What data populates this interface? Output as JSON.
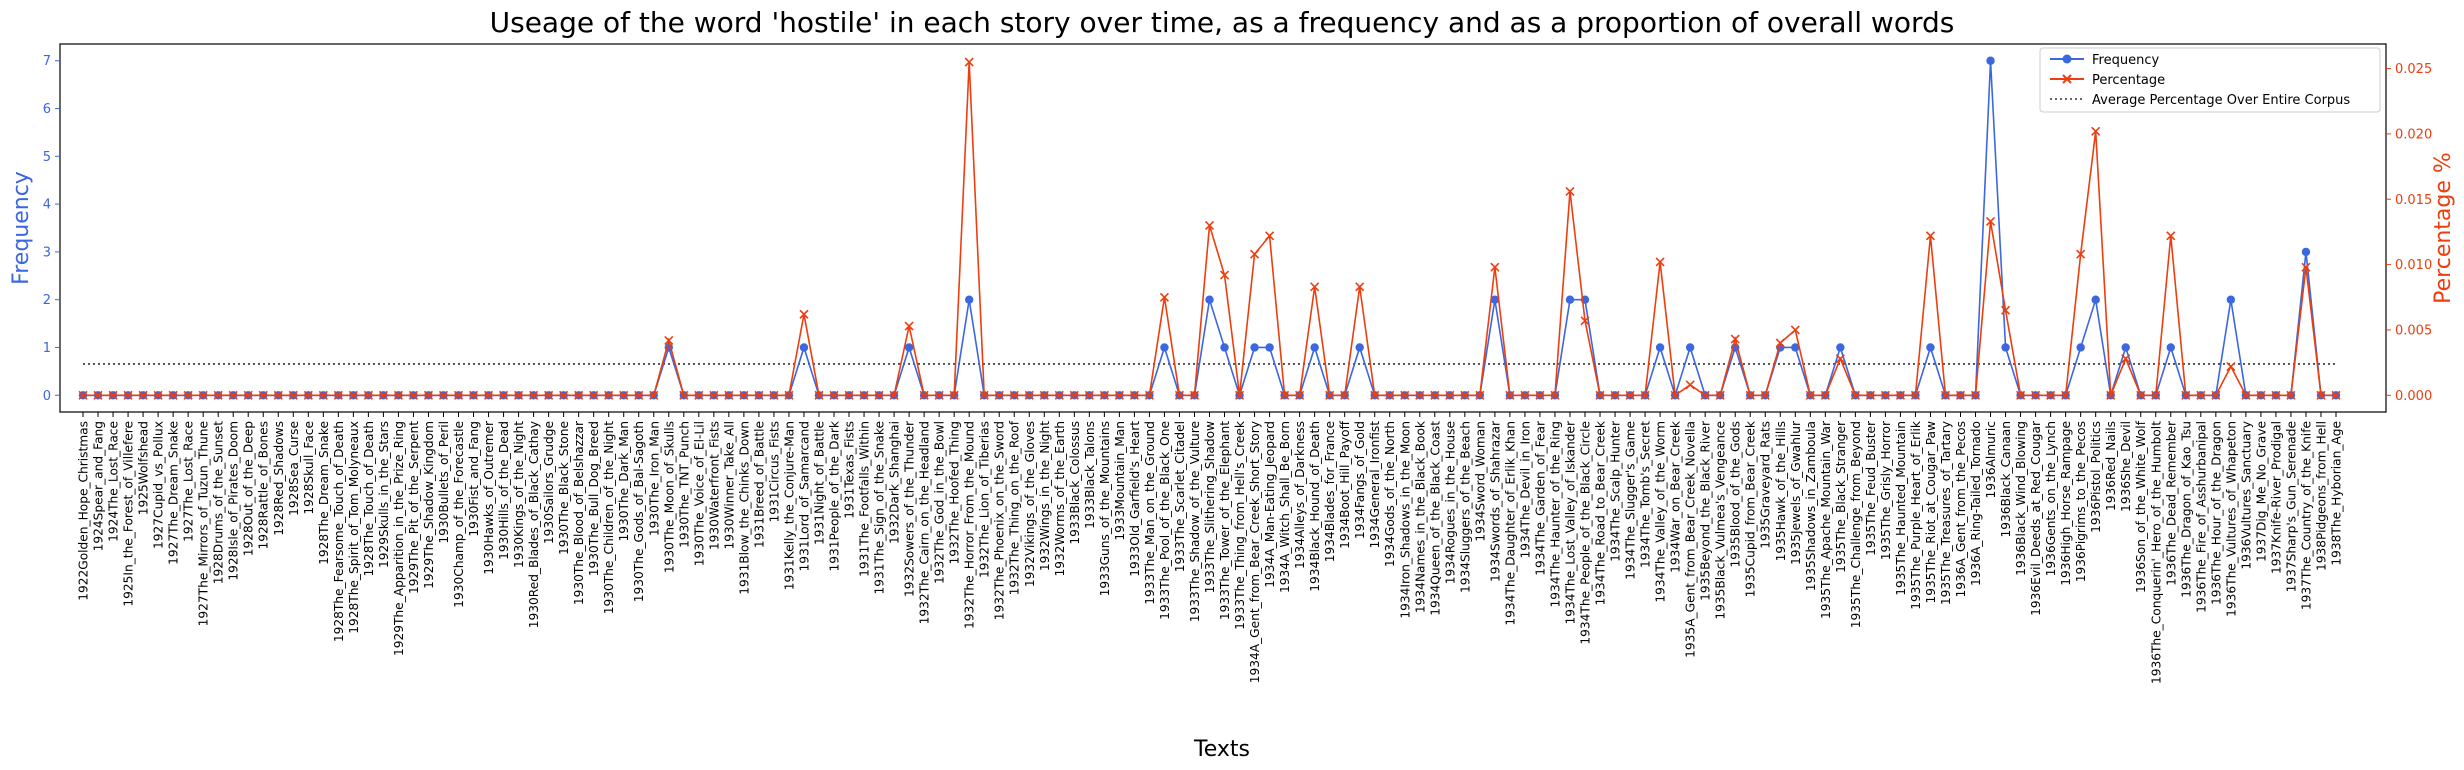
{
  "chart_data": {
    "type": "line",
    "title": "Useage of the word 'hostile' in each story over time, as a frequency and as a proportion of overall words",
    "xlabel": "Texts",
    "ylabel_left": "Frequency",
    "ylabel_right": "Percentage %",
    "ylim_left": [
      -0.35,
      7.35
    ],
    "ylim_right": [
      -0.00128,
      0.02688
    ],
    "yticks_left": [
      "0",
      "1",
      "2",
      "3",
      "4",
      "5",
      "6",
      "7"
    ],
    "yticks_right": [
      "0.000",
      "0.005",
      "0.010",
      "0.015",
      "0.020",
      "0.025"
    ],
    "legend_position": "top-right",
    "legend": [
      "Frequency",
      "Percentage",
      "Average Percentage Over Entire Corpus"
    ],
    "colors": {
      "frequency": "#3b67e0",
      "percentage": "#ec3e0e",
      "average": "#333333",
      "left_axis": "#3b67e0",
      "right_axis": "#ec3e0e"
    },
    "average_percentage": 0.0024,
    "categories": [
      "1922Golden_Hope_Christmas",
      "1924Spear_and_Fang",
      "1924The_Lost_Race",
      "1925In_the_Forest_of_Villefere",
      "1925Wolfshead",
      "1927Cupid_vs_Pollux",
      "1927The_Dream_Snake",
      "1927The_Lost_Race",
      "1927The_Mirrors_of_Tuzun_Thune",
      "1928Drums_of_the_Sunset",
      "1928Isle_of_Pirates_Doom",
      "1928Out_of_the_Deep",
      "1928Rattle_of_Bones",
      "1928Red_Shadows",
      "1928Sea_Curse",
      "1928Skull_Face",
      "1928The_Dream_Snake",
      "1928The_Fearsome_Touch_of_Death",
      "1928The_Spirit_of_Tom_Molyneaux",
      "1928The_Touch_of_Death",
      "1929Skulls_in_the_Stars",
      "1929The_Apparition_in_the_Prize_Ring",
      "1929The_Pit_of_the_Serpent",
      "1929The_Shadow_Kingdom",
      "1930Bullets_of_Peril",
      "1930Champ_of_the_Forecastle",
      "1930Fist_and_Fang",
      "1930Hawks_of_Outremer",
      "1930Hills_of_the_Dead",
      "1930Kings_of_the_Night",
      "1930Red_Blades_of_Black_Cathay",
      "1930Sailors_Grudge",
      "1930The_Black_Stone",
      "1930The_Blood_of_Belshazzar",
      "1930The_Bull_Dog_Breed",
      "1930The_Children_of_the_Night",
      "1930The_Dark_Man",
      "1930The_Gods_of_Bal-Sagoth",
      "1930The_Iron_Man",
      "1930The_Moon_of_Skulls",
      "1930The_TNT_Punch",
      "1930The_Voice_of_El-Lil",
      "1930Waterfront_Fists",
      "1930Winner_Take_All",
      "1931Blow_the_Chinks_Down",
      "1931Breed_of_Battle",
      "1931Circus_Fists",
      "1931Kelly_the_Conjure-Man",
      "1931Lord_of_Samarcand",
      "1931Night_of_Battle",
      "1931People_of_the_Dark",
      "1931Texas_Fists",
      "1931The_Footfalls_Within",
      "1931The_Sign_of_the_Snake",
      "1932Dark_Shanghai",
      "1932Sowers_of_the_Thunder",
      "1932The_Cairn_on_the_Headland",
      "1932The_God_in_the_Bowl",
      "1932The_Hoofed_Thing",
      "1932The_Horror_From_the_Mound",
      "1932The_Lion_of_Tiberias",
      "1932The_Phoenix_on_the_Sword",
      "1932The_Thing_on_the_Roof",
      "1932Vikings_of_the_Gloves",
      "1932Wings_in_the_Night",
      "1932Worms_of_the_Earth",
      "1933Black_Colossus",
      "1933Black_Talons",
      "1933Guns_of_the_Mountains",
      "1933Mountain_Man",
      "1933Old_Garfield's_Heart",
      "1933The_Man_on_the_Ground",
      "1933The_Pool_of_the_Black_One",
      "1933The_Scarlet_Citadel",
      "1933The_Shadow_of_the_Vulture",
      "1933The_Slithering_Shadow",
      "1933The_Tower_of_the_Elephant",
      "1933The_Thing_from_Hell's_Creek",
      "1934A_Gent_from_Bear_Creek_Short_Story",
      "1934A_Man-Eating_Jeopard",
      "1934A_Witch_Shall_Be_Born",
      "1934Alleys_of_Darkness",
      "1934Black_Hound_of_Death",
      "1934Blades_for_France",
      "1934Boot_Hill_Payoff",
      "1934Fangs_of_Gold",
      "1934General_Ironfist",
      "1934Gods_of_the_North",
      "1934Iron_Shadows_in_the_Moon",
      "1934Names_in_the_Black_Book",
      "1934Queen_of_the_Black_Coast",
      "1934Rogues_in_the_House",
      "1934Sluggers_of_the_Beach",
      "1934Sword_Woman",
      "1934Swords_of_Shahrazar",
      "1934The_Daughter_of_Erlik_Khan",
      "1934The_Devil_in_Iron",
      "1934The_Garden_of_Fear",
      "1934The_Haunter_of_the_Ring",
      "1934The_Lost_Valley_of_Iskander",
      "1934The_People_of_the_Black_Circle",
      "1934The_Road_to_Bear_Creek",
      "1934The_Scalp_Hunter",
      "1934The_Slugger's_Game",
      "1934The_Tomb's_Secret",
      "1934The_Valley_of_the_Worm",
      "1934War_on_Bear_Creek",
      "1935A_Gent_from_Bear_Creek_Novella",
      "1935Beyond_the_Black_River",
      "1935Black_Vulmea's_Vengeance",
      "1935Blood_of_the_Gods",
      "1935Cupid_from_Bear_Creek",
      "1935Graveyard_Rats",
      "1935Hawk_of_the_Hills",
      "1935Jewels_of_Gwahlur",
      "1935Shadows_in_Zamboula",
      "1935The_Apache_Mountain_War",
      "1935The_Black_Stranger",
      "1935The_Challenge_from_Beyond",
      "1935The_Feud_Buster",
      "1935The_Grisly_Horror",
      "1935The_Haunted_Mountain",
      "1935The_Purple_Heart_of_Erlik",
      "1935The_Riot_at_Cougar_Paw",
      "1935The_Treasures_of_Tartary",
      "1936A_Gent_from_the_Pecos",
      "1936A_Ring-Tailed_Tornado",
      "1936Almuric",
      "1936Black_Canaan",
      "1936Black_Wind_Blowing",
      "1936Evil_Deeds_at_Red_Cougar",
      "1936Gents_on_the_Lynch",
      "1936High_Horse_Rampage",
      "1936Pigrims_to_the_Pecos",
      "1936Pistol_Politics",
      "1936Red_Nails",
      "1936She_Devil",
      "1936Son_of_the_White_Wolf",
      "1936The_Conquerin'_Hero_of_the_Humbolt",
      "1936The_Dead_Remember",
      "1936The_Dragon_of_Kao_Tsu",
      "1936The_Fire_of_Asshurbanipal",
      "1936The_Hour_of_the_Dragon",
      "1936The_Vultures_of_Whapeton",
      "1936Vultures_Sanctuary",
      "1937Dig_Me_No_Grave",
      "1937Knife-River_Prodigal",
      "1937Sharp's_Gun_Serenade",
      "1937The_Country_of_the_Knife",
      "1938Pidgeons_from_Hell",
      "1938The_Hyborian_Age"
    ],
    "series": [
      {
        "name": "Frequency",
        "axis": "left",
        "values": [
          0,
          0,
          0,
          0,
          0,
          0,
          0,
          0,
          0,
          0,
          0,
          0,
          0,
          0,
          0,
          0,
          0,
          0,
          0,
          0,
          0,
          0,
          0,
          0,
          0,
          0,
          0,
          0,
          0,
          0,
          0,
          0,
          0,
          0,
          0,
          0,
          0,
          0,
          0,
          1,
          0,
          0,
          0,
          0,
          0,
          0,
          0,
          0,
          1,
          0,
          0,
          0,
          0,
          0,
          0,
          1,
          0,
          0,
          0,
          2,
          0,
          0,
          0,
          0,
          0,
          0,
          0,
          0,
          0,
          0,
          0,
          0,
          1,
          0,
          0,
          2,
          1,
          0,
          1,
          1,
          0,
          0,
          1,
          0,
          0,
          1,
          0,
          0,
          0,
          0,
          0,
          0,
          0,
          0,
          2,
          0,
          0,
          0,
          0,
          2,
          2,
          0,
          0,
          0,
          0,
          1,
          0,
          1,
          0,
          0,
          1,
          0,
          0,
          1,
          1,
          0,
          0,
          1,
          0,
          0,
          0,
          0,
          0,
          1,
          0,
          0,
          0,
          7,
          1,
          0,
          0,
          0,
          0,
          1,
          2,
          0,
          1,
          0,
          0,
          1,
          0,
          0,
          0,
          2,
          0,
          0,
          0,
          0,
          3,
          0,
          0
        ]
      },
      {
        "name": "Percentage",
        "axis": "right",
        "values": [
          0,
          0,
          0,
          0,
          0,
          0,
          0,
          0,
          0,
          0,
          0,
          0,
          0,
          0,
          0,
          0,
          0,
          0,
          0,
          0,
          0,
          0,
          0,
          0,
          0,
          0,
          0,
          0,
          0,
          0,
          0,
          0,
          0,
          0,
          0,
          0,
          0,
          0,
          0,
          0.0042,
          0,
          0,
          0,
          0,
          0,
          0,
          0,
          0,
          0.0062,
          0,
          0,
          0,
          0,
          0,
          0,
          0.0053,
          0,
          0,
          0,
          0.0255,
          0,
          0,
          0,
          0,
          0,
          0,
          0,
          0,
          0,
          0,
          0,
          0,
          0.0075,
          0,
          0,
          0.013,
          0.0092,
          0,
          0.0108,
          0.0122,
          0,
          0,
          0.0083,
          0,
          0,
          0.0083,
          0,
          0,
          0,
          0,
          0,
          0,
          0,
          0,
          0.0098,
          0,
          0,
          0,
          0,
          0.0156,
          0.0057,
          0,
          0,
          0,
          0,
          0.0102,
          0,
          0.0008,
          0,
          0,
          0.0043,
          0,
          0,
          0.004,
          0.005,
          0,
          0,
          0.0028,
          0,
          0,
          0,
          0,
          0,
          0.0122,
          0,
          0,
          0,
          0.0133,
          0.0065,
          0,
          0,
          0,
          0,
          0.0108,
          0.0202,
          0,
          0.0028,
          0,
          0,
          0.0122,
          0,
          0,
          0,
          0.0022,
          0,
          0,
          0,
          0,
          0.0098,
          0,
          0
        ]
      }
    ]
  }
}
